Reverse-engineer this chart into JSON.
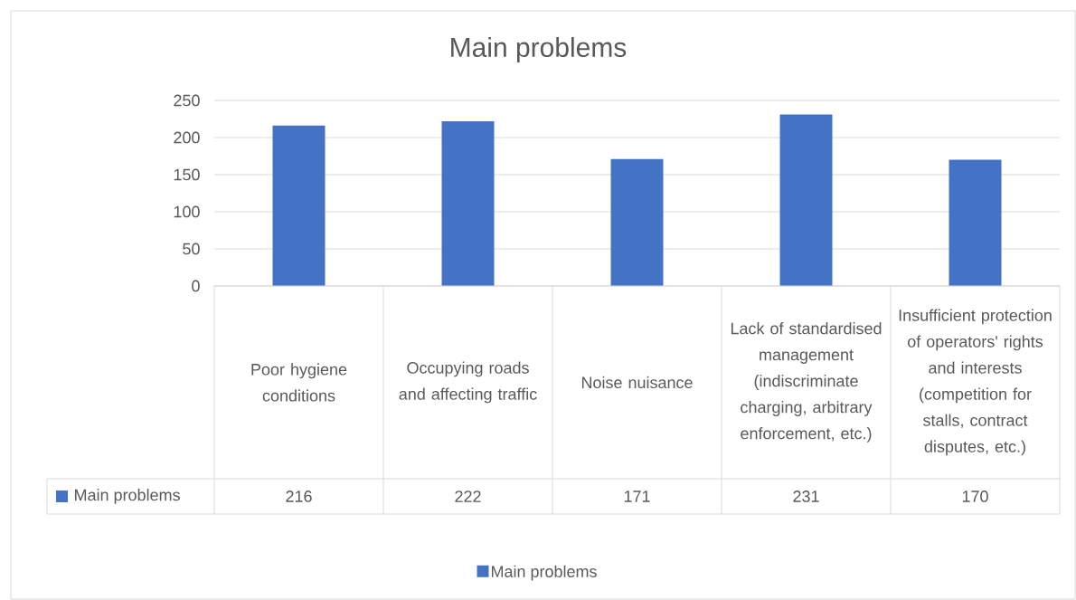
{
  "chart_data": {
    "type": "bar",
    "title": "Main problems",
    "categories": [
      "Poor hygiene conditions",
      "Occupying roads and affecting traffic",
      "Noise nuisance",
      "Lack of standardised management (indiscriminate charging, arbitrary enforcement, etc.)",
      "Insufficient protection of operators' rights and interests (competition for stalls, contract disputes, etc.)"
    ],
    "series": [
      {
        "name": "Main problems",
        "color": "#4472c4",
        "values": [
          216,
          222,
          171,
          231,
          170
        ]
      }
    ],
    "ylim": [
      0,
      250
    ],
    "yticks": [
      0,
      50,
      100,
      150,
      200,
      250
    ],
    "grid": "y",
    "legend": "bottom",
    "data_labels": true
  }
}
